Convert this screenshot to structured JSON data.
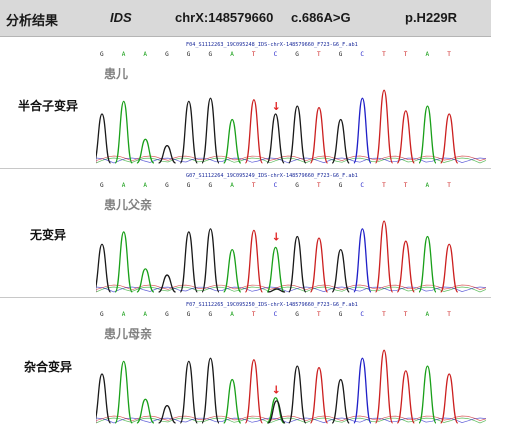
{
  "header": {
    "label": "分析结果",
    "gene": "IDS",
    "position": "chrX:148579660",
    "cdna": "c.686A>G",
    "protein": "p.H229R"
  },
  "colors": {
    "A": "#1aa01a",
    "C": "#2020c8",
    "G": "#1a1a1a",
    "T": "#cc2020",
    "marker": "#e02020"
  },
  "sequence": [
    "G",
    "A",
    "A",
    "G",
    "G",
    "G",
    "A",
    "T",
    "C",
    "G",
    "T",
    "G",
    "C",
    "T",
    "T",
    "A",
    "T"
  ],
  "rows": [
    {
      "label": "半合子变异",
      "subject": "患儿",
      "file": "F04_S1112263_19C095248_IDS-chrX-148579660_F723-G6_F.ab1",
      "genotype": "hemizygous"
    },
    {
      "label": "无变异",
      "subject": "患儿父亲",
      "file": "G07_S1112264_19C095249_IDS-chrX-148579660_F723-G6_F.ab1",
      "genotype": "wildtype"
    },
    {
      "label": "杂合变异",
      "subject": "患儿母亲",
      "file": "F07_S1112265_19C095250_IDS-chrX-148579660_F723-G6_F.ab1",
      "genotype": "heterozygous"
    }
  ],
  "marker_symbol": "↓"
}
